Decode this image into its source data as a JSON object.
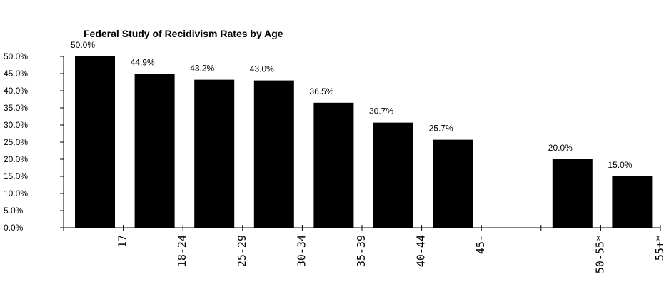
{
  "chart_data": {
    "type": "bar",
    "title": "Federal Study of Recidivism Rates by Age",
    "xlabel": "",
    "ylabel": "",
    "ylim": [
      0,
      50
    ],
    "yticks": [
      "0.0%",
      "5.0%",
      "10.0%",
      "15.0%",
      "20.0%",
      "25.0%",
      "30.0%",
      "35.0%",
      "40.0%",
      "45.0%",
      "50.0%"
    ],
    "categories": [
      "17",
      "18-24",
      "25-29",
      "30-34",
      "35-39",
      "40-44",
      "45-",
      "",
      "50-55*",
      "55+*"
    ],
    "values": [
      50.0,
      44.9,
      43.2,
      43.0,
      36.5,
      30.7,
      25.7,
      null,
      20.0,
      15.0
    ],
    "data_labels": [
      "50.0%",
      "44.9%",
      "43.2%",
      "43.0%",
      "36.5%",
      "30.7%",
      "25.7%",
      "",
      "20.0%",
      "15.0%"
    ],
    "grid": false,
    "legend": "none",
    "bar_color": "#000000"
  }
}
